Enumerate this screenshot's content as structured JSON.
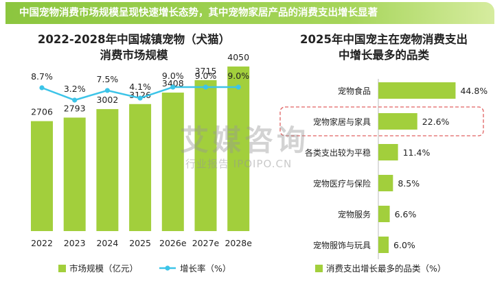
{
  "banner": {
    "text": "中国宠物消费市场规模呈现快速增长态势，其中宠物家居产品的消费支出增长显著"
  },
  "watermark": {
    "main": "艾媒咨询",
    "sub": "行业报告 IPOIPO.CN"
  },
  "colors": {
    "bar": "#a2cf3c",
    "line": "#3cc4e8",
    "banner": "#8cc63f",
    "highlight_border": "#e06060"
  },
  "chart_data": [
    {
      "type": "bar",
      "title": "2022-2028年中国城镇宠物（犬猫）\n消费市场规模",
      "categories": [
        "2022",
        "2023",
        "2024",
        "2025",
        "2026e",
        "2027e",
        "2028e"
      ],
      "series": [
        {
          "name": "市场规模（亿元）",
          "type": "bar",
          "values": [
            2706,
            2793,
            3002,
            3126,
            3408,
            3715,
            4050
          ]
        },
        {
          "name": "增长率（%）",
          "type": "line",
          "values": [
            8.7,
            3.2,
            7.5,
            4.1,
            9.0,
            9.0,
            9.0
          ],
          "labels": [
            "8.7%",
            "3.2%",
            "7.5%",
            "4.1%",
            "9.0%",
            "9.0%",
            "9.0%"
          ]
        }
      ],
      "legend": "bottom"
    },
    {
      "type": "bar",
      "orientation": "horizontal",
      "title": "2025年中国宠主在宠物消费支出\n中增长最多的品类",
      "categories": [
        "宠物食品",
        "宠物家居与家具",
        "各类支出较为平稳",
        "宠物医疗与保险",
        "宠物服务",
        "宠物服饰与玩具"
      ],
      "series": [
        {
          "name": "消费支出增长最多的品类（%）",
          "values": [
            44.8,
            22.6,
            11.4,
            8.5,
            6.6,
            6.0
          ],
          "labels": [
            "44.8%",
            "22.6%",
            "11.4%",
            "8.5%",
            "6.6%",
            "6.0%"
          ]
        }
      ],
      "highlighted_category": "宠物家居与家具",
      "legend": "bottom"
    }
  ]
}
